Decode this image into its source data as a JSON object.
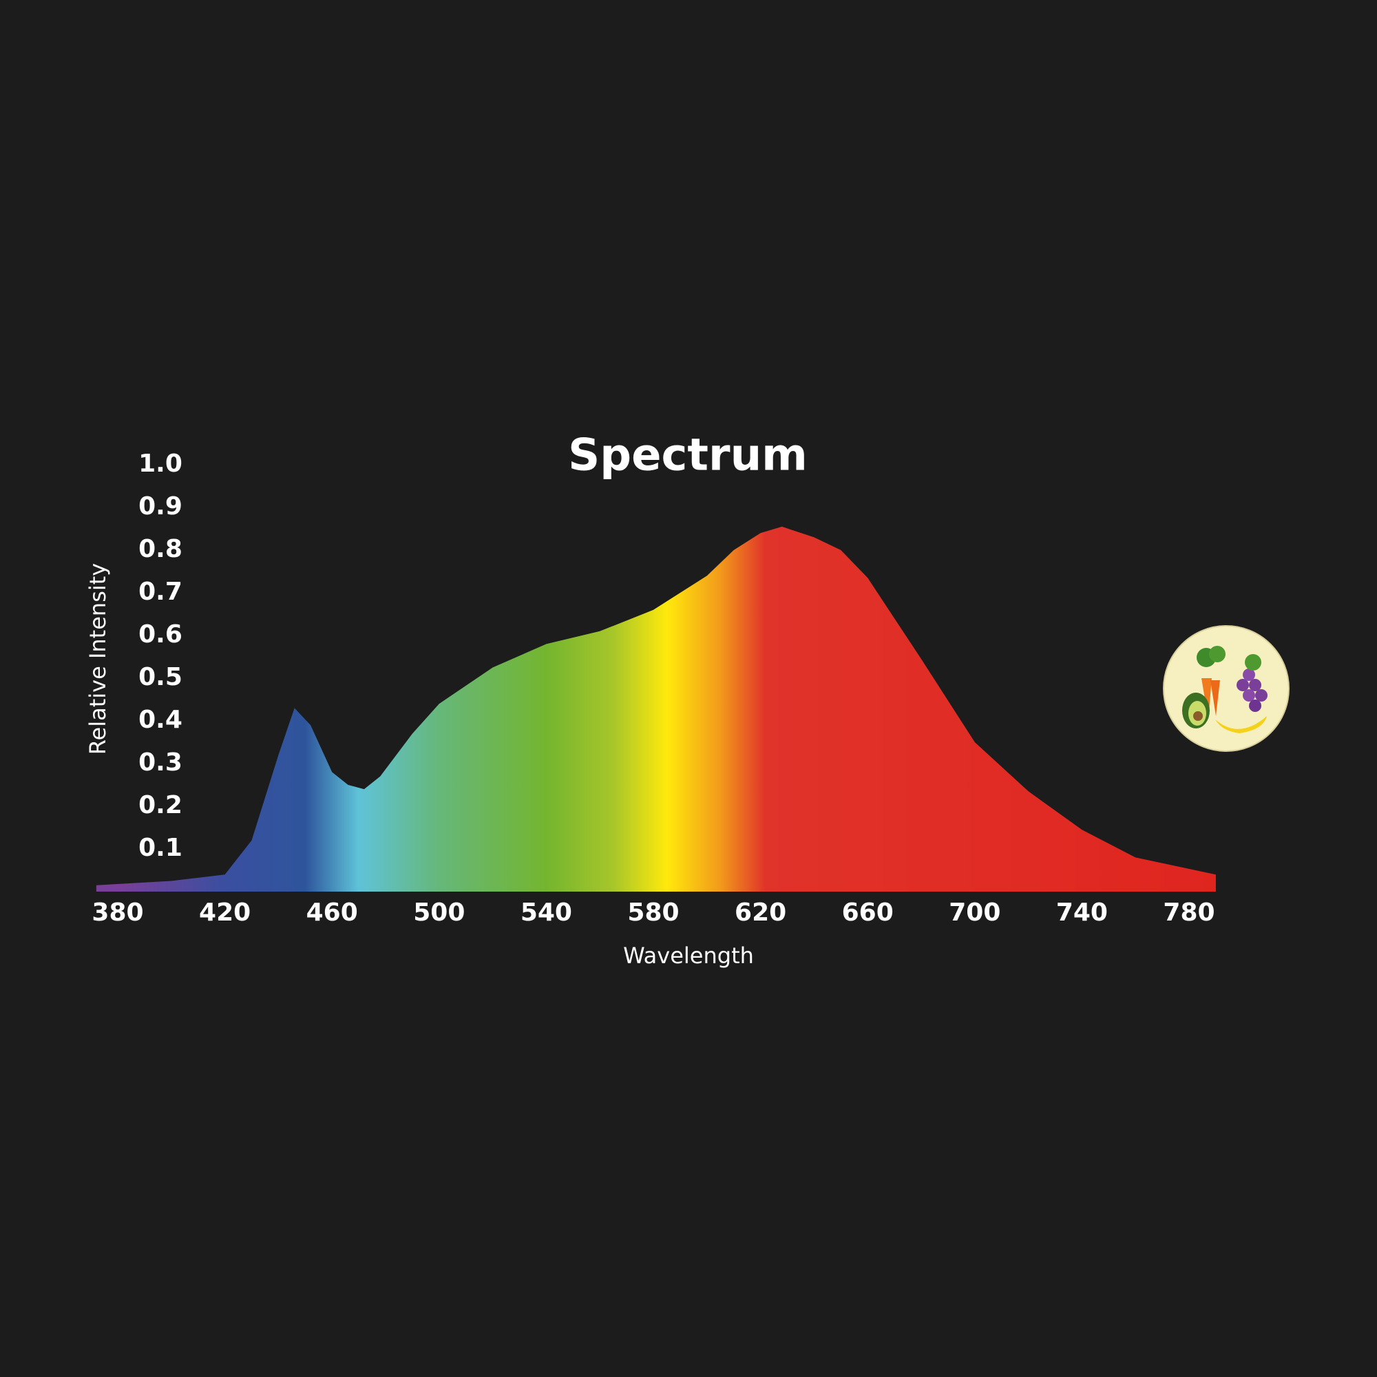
{
  "chart_data": {
    "type": "area",
    "title": "Spectrum",
    "x_label": "Wavelength",
    "y_label": "Relative Intensity",
    "x": [
      372,
      400,
      420,
      430,
      440,
      446,
      452,
      460,
      466,
      472,
      478,
      490,
      500,
      520,
      540,
      560,
      580,
      600,
      610,
      620,
      628,
      640,
      650,
      660,
      680,
      700,
      720,
      740,
      760,
      790
    ],
    "values": [
      0.015,
      0.025,
      0.04,
      0.12,
      0.32,
      0.43,
      0.39,
      0.28,
      0.25,
      0.24,
      0.27,
      0.37,
      0.44,
      0.525,
      0.58,
      0.61,
      0.66,
      0.74,
      0.8,
      0.84,
      0.855,
      0.83,
      0.8,
      0.735,
      0.545,
      0.35,
      0.235,
      0.145,
      0.08,
      0.04
    ],
    "xlim": [
      372,
      790
    ],
    "ylim": [
      0,
      1
    ],
    "xticks": [
      380,
      420,
      460,
      500,
      540,
      580,
      620,
      660,
      700,
      740,
      780
    ],
    "yticks": [
      0.1,
      0.2,
      0.3,
      0.4,
      0.5,
      0.6,
      0.7,
      0.8,
      0.9,
      {
        "value": 1,
        "label": "1.0"
      }
    ],
    "grid": false,
    "color_stops": [
      {
        "x": 380,
        "color": "#7a3f98"
      },
      {
        "x": 420,
        "color": "#3a4fa0"
      },
      {
        "x": 450,
        "color": "#2e559c"
      },
      {
        "x": 470,
        "color": "#5fc3d8"
      },
      {
        "x": 500,
        "color": "#66b77a"
      },
      {
        "x": 540,
        "color": "#74b52f"
      },
      {
        "x": 565,
        "color": "#a7c62a"
      },
      {
        "x": 585,
        "color": "#ffe90c"
      },
      {
        "x": 605,
        "color": "#f29a1b"
      },
      {
        "x": 622,
        "color": "#e0332a"
      },
      {
        "x": 790,
        "color": "#e0251f"
      }
    ]
  }
}
